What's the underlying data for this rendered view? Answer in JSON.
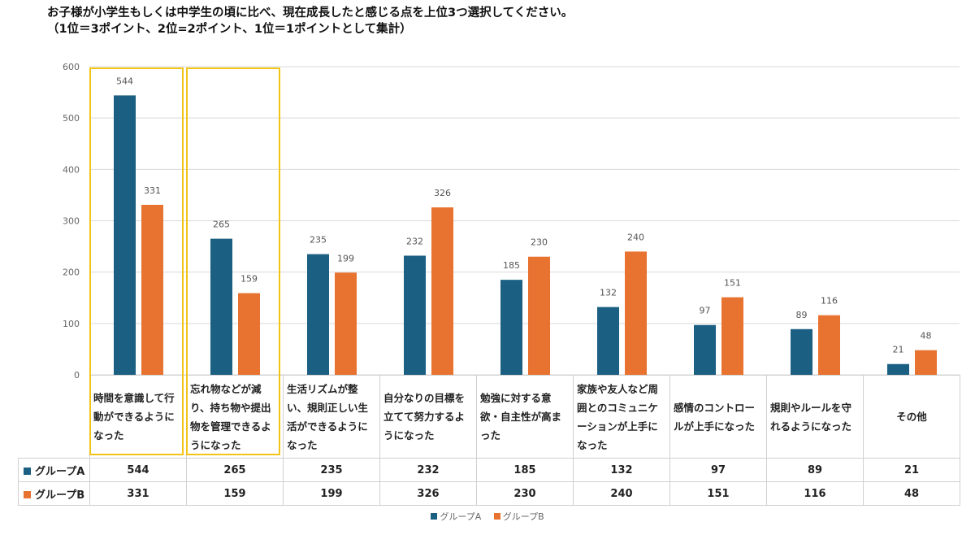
{
  "title_lines": [
    "お子様が小学生もしくは中学生の頃に比べ、現在成長したと感じる点を上位3つ選択してください。",
    "（1位＝3ポイント、2位=2ポイント、1位＝1ポイントとして集計）"
  ],
  "colors": {
    "series_a": "#1b5f82",
    "series_b": "#e8722f",
    "highlight": "#f2c418"
  },
  "chart_data": {
    "type": "bar",
    "title": "お子様が小学生もしくは中学生の頃に比べ、現在成長したと感じる点を上位3つ選択してください。（1位＝3ポイント、2位=2ポイント、1位＝1ポイントとして集計）",
    "ylim": [
      0,
      600
    ],
    "yticks": [
      0,
      100,
      200,
      300,
      400,
      500,
      600
    ],
    "categories": [
      "時間を意識して行動ができるようになった",
      "忘れ物などが減り、持ち物や提出物を管理できるようになった",
      "生活リズムが整い、規則正しい生活ができるようになった",
      "自分なりの目標を立てて努力するようになった",
      "勉強に対する意欲・自主性が高まった",
      "家族や友人など周囲とのコミュニケーションが上手になった",
      "感情のコントロールが上手になった",
      "規則やルールを守れるようになった",
      "その他"
    ],
    "series": [
      {
        "name": "グループA",
        "values": [
          544,
          265,
          235,
          232,
          185,
          132,
          97,
          89,
          21
        ]
      },
      {
        "name": "グループB",
        "values": [
          331,
          159,
          199,
          326,
          230,
          240,
          151,
          116,
          48
        ]
      }
    ],
    "highlighted_categories": [
      0,
      1
    ],
    "legend": {
      "position": "bottom",
      "labels": [
        "グループA",
        "グループB"
      ]
    },
    "data_table": true
  }
}
